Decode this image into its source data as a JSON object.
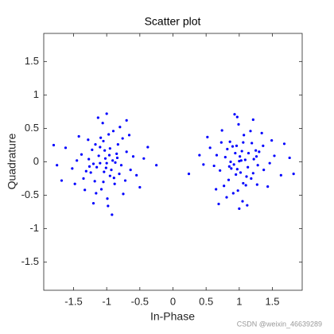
{
  "chart_data": {
    "type": "scatter",
    "title": "Scatter plot",
    "xlabel": "In-Phase",
    "ylabel": "Quadrature",
    "annotation": "CSDN @weixin_46639289",
    "color": "#0000ff",
    "xlim": [
      -1.95,
      1.95
    ],
    "ylim": [
      -1.92,
      1.92
    ],
    "xticks": [
      -1.5,
      -1,
      -0.5,
      0,
      0.5,
      1,
      1.5
    ],
    "yticks": [
      -1.5,
      -1,
      -0.5,
      0,
      0.5,
      1,
      1.5
    ],
    "x": [
      -1.02,
      -0.85,
      -1.15,
      -0.95,
      -1.22,
      -0.78,
      -1.05,
      -0.91,
      -1.31,
      -0.88,
      -1.1,
      -0.7,
      -1.18,
      -1.0,
      -0.97,
      -1.27,
      -0.83,
      -1.08,
      -0.64,
      -1.38,
      -0.93,
      -1.12,
      -0.81,
      -1.2,
      -1.03,
      -0.76,
      -1.35,
      -0.99,
      -1.06,
      -0.6,
      -1.45,
      -0.9,
      -1.16,
      -0.72,
      -1.28,
      -1.04,
      -0.87,
      -1.09,
      -0.95,
      -1.24,
      -0.55,
      -1.52,
      -0.8,
      -1.13,
      -0.98,
      -1.42,
      -0.66,
      -1.33,
      -0.75,
      -1.62,
      -0.44,
      -1.75,
      -1.0,
      -1.2,
      -0.5,
      -1.48,
      -0.92,
      -0.38,
      -1.8,
      -0.25,
      -1.68,
      -0.7,
      -1.1,
      -0.96,
      -1.05,
      -0.84,
      -1.17,
      -1.01,
      -0.89,
      -1.26,
      1.03,
      0.88,
      1.14,
      0.96,
      1.21,
      0.79,
      1.06,
      0.92,
      1.3,
      0.86,
      1.11,
      0.71,
      1.19,
      1.0,
      0.98,
      1.28,
      0.84,
      1.07,
      0.66,
      1.37,
      0.94,
      1.13,
      0.82,
      1.22,
      1.02,
      0.77,
      1.36,
      0.99,
      1.05,
      0.62,
      1.46,
      0.91,
      1.17,
      0.73,
      1.27,
      1.04,
      0.87,
      1.1,
      0.95,
      1.25,
      0.56,
      1.53,
      0.81,
      1.12,
      0.97,
      1.43,
      0.65,
      1.34,
      0.74,
      1.63,
      0.46,
      1.76,
      1.0,
      1.21,
      0.52,
      1.49,
      0.93,
      0.24,
      1.82,
      0.4,
      1.68,
      0.69,
      1.09,
      0.97,
      1.06,
      0.85,
      1.18,
      1.01,
      0.9,
      1.26
    ],
    "values": [
      0.05,
      0.12,
      -0.08,
      -0.21,
      0.18,
      -0.05,
      0.31,
      0.02,
      -0.14,
      -0.33,
      0.22,
      0.15,
      -0.29,
      -0.02,
      0.41,
      0.04,
      0.26,
      -0.41,
      -0.12,
      0.11,
      -0.12,
      0.09,
      -0.18,
      -0.03,
      0.17,
      0.35,
      -0.25,
      -0.55,
      0.58,
      0.08,
      0.02,
      0.46,
      -0.47,
      -0.28,
      0.33,
      -0.15,
      -0.01,
      0.36,
      0.2,
      -0.16,
      -0.2,
      -0.1,
      0.52,
      0.66,
      -0.66,
      0.38,
      0.4,
      -0.42,
      -0.48,
      0.21,
      0.05,
      -0.05,
      0.72,
      -0.62,
      -0.38,
      -0.33,
      -0.79,
      0.22,
      0.25,
      -0.05,
      -0.28,
      0.62,
      -0.02,
      0.1,
      -0.3,
      0.06,
      0.26,
      -0.09,
      -0.24,
      -0.07,
      0.02,
      -0.1,
      0.13,
      0.24,
      -0.17,
      0.07,
      -0.32,
      -0.04,
      0.15,
      0.3,
      -0.22,
      -0.13,
      0.28,
      0.01,
      -0.43,
      -0.05,
      -0.27,
      0.4,
      0.1,
      -0.12,
      0.13,
      -0.08,
      0.19,
      0.04,
      -0.16,
      -0.36,
      0.24,
      0.56,
      -0.59,
      -0.06,
      -0.02,
      -0.47,
      0.46,
      0.29,
      -0.34,
      0.16,
      0.0,
      -0.35,
      -0.19,
      0.17,
      0.21,
      0.09,
      -0.53,
      -0.65,
      0.67,
      -0.37,
      -0.41,
      0.43,
      0.47,
      -0.2,
      -0.04,
      0.06,
      -0.7,
      0.63,
      0.37,
      0.32,
      0.71,
      -0.18,
      -0.18,
      0.1,
      0.27,
      -0.63,
      0.03,
      -0.11,
      0.29,
      -0.07,
      -0.25,
      0.08,
      0.23,
      0.08
    ]
  }
}
